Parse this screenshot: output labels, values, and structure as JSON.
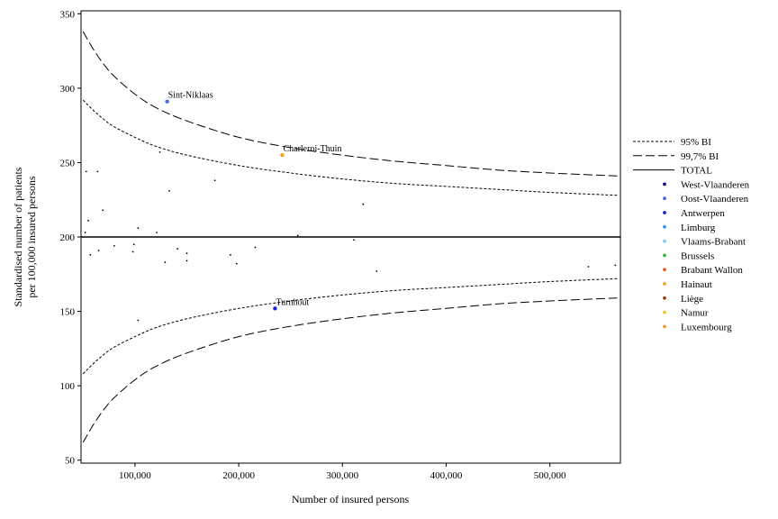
{
  "chart_data": {
    "type": "scatter",
    "title": "",
    "xlabel": "Number of insured persons",
    "ylabel_lines": [
      "Standardised number of patients",
      "per 100,000 insured persons"
    ],
    "xlim": [
      48000,
      568000
    ],
    "ylim": [
      48,
      352
    ],
    "x_ticks": [
      100000,
      200000,
      300000,
      400000,
      500000
    ],
    "x_tick_labels": [
      "100,000",
      "200,000",
      "300,000",
      "400,000",
      "500,000"
    ],
    "y_ticks": [
      50,
      100,
      150,
      200,
      250,
      300,
      350
    ],
    "y_tick_labels": [
      "50",
      "100",
      "150",
      "200",
      "250",
      "300",
      "350"
    ],
    "grid": false,
    "legend_position": "right",
    "total": 200,
    "limits": {
      "x": [
        50000,
        60000,
        70000,
        80000,
        100000,
        120000,
        150000,
        200000,
        250000,
        300000,
        350000,
        400000,
        450000,
        500000,
        565000
      ],
      "ci95_upper": [
        292,
        285,
        279,
        274,
        267,
        261,
        255,
        248,
        243,
        239,
        236,
        234,
        232,
        230,
        228
      ],
      "ci95_lower": [
        108,
        115,
        121,
        126,
        133,
        139,
        145,
        152,
        157,
        161,
        164,
        166,
        168,
        170,
        172
      ],
      "ci997_upper": [
        338,
        326,
        316,
        308,
        296,
        287,
        278,
        267,
        260,
        255,
        251,
        248,
        245,
        243,
        241
      ],
      "ci997_lower": [
        62,
        74,
        84,
        92,
        104,
        113,
        122,
        133,
        140,
        145,
        149,
        152,
        155,
        157,
        159
      ]
    },
    "points": [
      {
        "x": 53000,
        "y": 244
      },
      {
        "x": 55000,
        "y": 211
      },
      {
        "x": 52000,
        "y": 203
      },
      {
        "x": 57000,
        "y": 188
      },
      {
        "x": 64000,
        "y": 244
      },
      {
        "x": 65000,
        "y": 191
      },
      {
        "x": 69000,
        "y": 218
      },
      {
        "x": 80000,
        "y": 194
      },
      {
        "x": 98000,
        "y": 190
      },
      {
        "x": 99000,
        "y": 195
      },
      {
        "x": 103000,
        "y": 206
      },
      {
        "x": 103000,
        "y": 144
      },
      {
        "x": 121000,
        "y": 203
      },
      {
        "x": 124000,
        "y": 257
      },
      {
        "x": 129000,
        "y": 183
      },
      {
        "x": 133000,
        "y": 231
      },
      {
        "x": 141000,
        "y": 192
      },
      {
        "x": 150000,
        "y": 189
      },
      {
        "x": 150000,
        "y": 184
      },
      {
        "x": 177000,
        "y": 238
      },
      {
        "x": 192000,
        "y": 188
      },
      {
        "x": 198000,
        "y": 182
      },
      {
        "x": 216000,
        "y": 193
      },
      {
        "x": 257000,
        "y": 201
      },
      {
        "x": 311000,
        "y": 198
      },
      {
        "x": 320000,
        "y": 222
      },
      {
        "x": 333000,
        "y": 177
      },
      {
        "x": 537000,
        "y": 180
      },
      {
        "x": 563000,
        "y": 181
      }
    ],
    "highlighted": [
      {
        "label": "Sint-Niklaas",
        "x": 131000,
        "y": 291,
        "region": "Oost-Vlaanderen",
        "color": "#4a6fe0"
      },
      {
        "label": "Charleroi-Thuin",
        "x": 242000,
        "y": 255,
        "region": "Hainaut",
        "color": "#f5a030"
      },
      {
        "label": "Turnhout",
        "x": 235000,
        "y": 152,
        "region": "Antwerpen",
        "color": "#1f1fd0"
      }
    ],
    "legend": [
      {
        "label": "95% BI",
        "kind": "line",
        "dash": "short"
      },
      {
        "label": "99,7% BI",
        "kind": "line",
        "dash": "long"
      },
      {
        "label": "TOTAL",
        "kind": "line",
        "dash": "solid"
      },
      {
        "label": "West-Vlaanderen",
        "kind": "marker",
        "color": "#0a0a7a"
      },
      {
        "label": "Oost-Vlaanderen",
        "kind": "marker",
        "color": "#4a6fe0"
      },
      {
        "label": "Antwerpen",
        "kind": "marker",
        "color": "#1f1fd0"
      },
      {
        "label": "Limburg",
        "kind": "marker",
        "color": "#3399ee"
      },
      {
        "label": "Vlaams-Brabant",
        "kind": "marker",
        "color": "#88c8f5"
      },
      {
        "label": "Brussels",
        "kind": "marker",
        "color": "#33bb33"
      },
      {
        "label": "Brabant Wallon",
        "kind": "marker",
        "color": "#e0641e"
      },
      {
        "label": "Hainaut",
        "kind": "marker",
        "color": "#f5a030"
      },
      {
        "label": "Liège",
        "kind": "marker",
        "color": "#a03c14"
      },
      {
        "label": "Namur",
        "kind": "marker",
        "color": "#f0c828"
      },
      {
        "label": "Luxembourg",
        "kind": "marker",
        "color": "#f5962d"
      }
    ]
  }
}
